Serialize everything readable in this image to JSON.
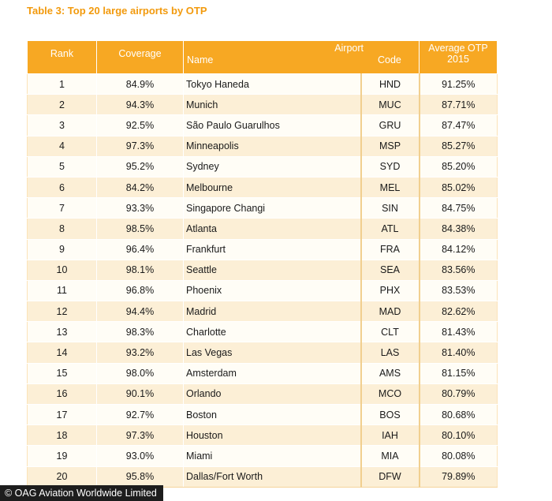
{
  "title": "Table 3: Top 20 large airports by OTP",
  "headers": {
    "rank": "Rank",
    "coverage": "Coverage",
    "airport": "Airport",
    "name": "Name",
    "code": "Code",
    "otp_line1": "Average OTP",
    "otp_line2": "2015"
  },
  "rows": [
    {
      "rank": "1",
      "coverage": "84.9%",
      "name": "Tokyo Haneda",
      "code": "HND",
      "otp": "91.25%"
    },
    {
      "rank": "2",
      "coverage": "94.3%",
      "name": "Munich",
      "code": "MUC",
      "otp": "87.71%"
    },
    {
      "rank": "3",
      "coverage": "92.5%",
      "name": "São Paulo Guarulhos",
      "code": "GRU",
      "otp": "87.47%"
    },
    {
      "rank": "4",
      "coverage": "97.3%",
      "name": "Minneapolis",
      "code": "MSP",
      "otp": "85.27%"
    },
    {
      "rank": "5",
      "coverage": "95.2%",
      "name": "Sydney",
      "code": "SYD",
      "otp": "85.20%"
    },
    {
      "rank": "6",
      "coverage": "84.2%",
      "name": "Melbourne",
      "code": "MEL",
      "otp": "85.02%"
    },
    {
      "rank": "7",
      "coverage": "93.3%",
      "name": "Singapore Changi",
      "code": "SIN",
      "otp": "84.75%"
    },
    {
      "rank": "8",
      "coverage": "98.5%",
      "name": "Atlanta",
      "code": "ATL",
      "otp": "84.38%"
    },
    {
      "rank": "9",
      "coverage": "96.4%",
      "name": "Frankfurt",
      "code": "FRA",
      "otp": "84.12%"
    },
    {
      "rank": "10",
      "coverage": "98.1%",
      "name": "Seattle",
      "code": "SEA",
      "otp": "83.56%"
    },
    {
      "rank": "11",
      "coverage": "96.8%",
      "name": "Phoenix",
      "code": "PHX",
      "otp": "83.53%"
    },
    {
      "rank": "12",
      "coverage": "94.4%",
      "name": "Madrid",
      "code": "MAD",
      "otp": "82.62%"
    },
    {
      "rank": "13",
      "coverage": "98.3%",
      "name": "Charlotte",
      "code": "CLT",
      "otp": "81.43%"
    },
    {
      "rank": "14",
      "coverage": "93.2%",
      "name": "Las Vegas",
      "code": "LAS",
      "otp": "81.40%"
    },
    {
      "rank": "15",
      "coverage": "98.0%",
      "name": "Amsterdam",
      "code": "AMS",
      "otp": "81.15%"
    },
    {
      "rank": "16",
      "coverage": "90.1%",
      "name": "Orlando",
      "code": "MCO",
      "otp": "80.79%"
    },
    {
      "rank": "17",
      "coverage": "92.7%",
      "name": "Boston",
      "code": "BOS",
      "otp": "80.68%"
    },
    {
      "rank": "18",
      "coverage": "97.3%",
      "name": "Houston",
      "code": "IAH",
      "otp": "80.10%"
    },
    {
      "rank": "19",
      "coverage": "93.0%",
      "name": "Miami",
      "code": "MIA",
      "otp": "80.08%"
    },
    {
      "rank": "20",
      "coverage": "95.8%",
      "name": "Dallas/Fort Worth",
      "code": "DFW",
      "otp": "79.89%"
    }
  ],
  "watermark": "© OAG Aviation Worldwide Limited",
  "colors": {
    "title": "#f29a0d",
    "header_bg": "#f7a823",
    "row_odd": "#fffdf6",
    "row_even": "#fcefd6"
  }
}
